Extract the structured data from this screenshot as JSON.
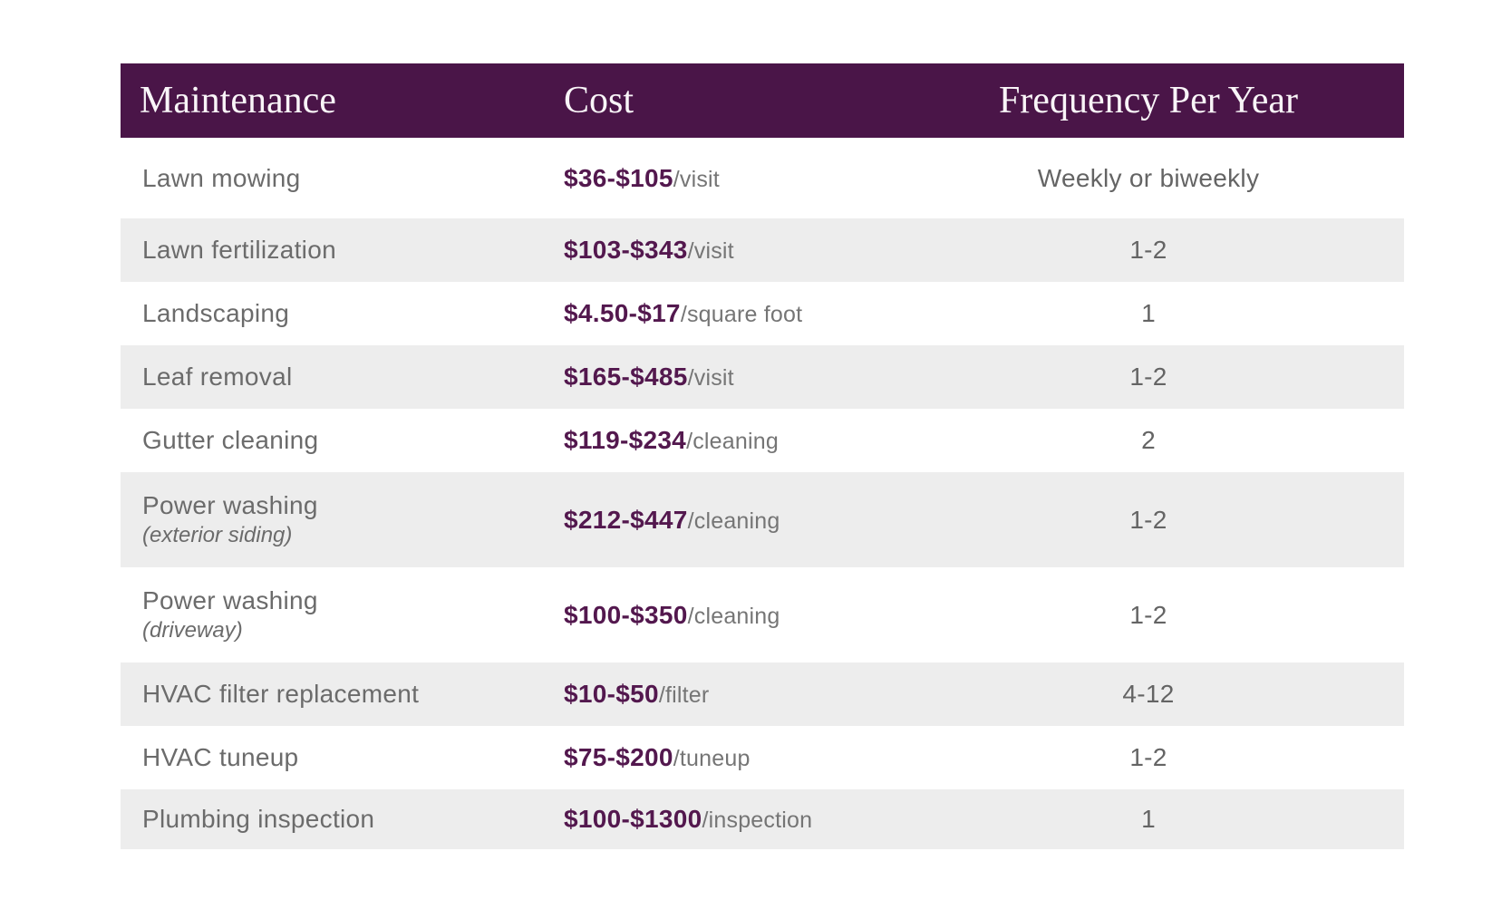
{
  "chart_data": {
    "type": "table",
    "columns": [
      "Maintenance",
      "Cost",
      "Frequency Per Year"
    ],
    "rows": [
      {
        "maintenance": "Lawn mowing",
        "sub": "",
        "cost": "$36-$105",
        "unit": "/visit",
        "frequency": "Weekly or biweekly"
      },
      {
        "maintenance": "Lawn fertilization",
        "sub": "",
        "cost": "$103-$343",
        "unit": "/visit",
        "frequency": "1-2"
      },
      {
        "maintenance": "Landscaping",
        "sub": "",
        "cost": "$4.50-$17",
        "unit": "/square foot",
        "frequency": "1"
      },
      {
        "maintenance": "Leaf removal",
        "sub": "",
        "cost": "$165-$485",
        "unit": "/visit",
        "frequency": "1-2"
      },
      {
        "maintenance": "Gutter cleaning",
        "sub": "",
        "cost": "$119-$234",
        "unit": "/cleaning",
        "frequency": "2"
      },
      {
        "maintenance": "Power washing",
        "sub": "(exterior siding)",
        "cost": "$212-$447",
        "unit": "/cleaning",
        "frequency": "1-2"
      },
      {
        "maintenance": "Power washing",
        "sub": "(driveway)",
        "cost": "$100-$350",
        "unit": "/cleaning",
        "frequency": "1-2"
      },
      {
        "maintenance": "HVAC filter replacement",
        "sub": "",
        "cost": "$10-$50",
        "unit": "/filter",
        "frequency": "4-12"
      },
      {
        "maintenance": "HVAC tuneup",
        "sub": "",
        "cost": "$75-$200",
        "unit": "/tuneup",
        "frequency": "1-2"
      },
      {
        "maintenance": "Plumbing inspection",
        "sub": "",
        "cost": "$100-$1300",
        "unit": "/inspection",
        "frequency": "1"
      }
    ],
    "layout": {
      "stripe": "alternating",
      "stripe_start_row": 2,
      "legend": "none",
      "grid": "off"
    }
  },
  "colors": {
    "header_bg": "#4a1548",
    "header_text": "#f9f5f8",
    "cost_text": "#53184e",
    "body_text": "#6b6b6b",
    "frequency_text": "#646464",
    "stripe_bg": "#ededed",
    "page_bg": "#ffffff"
  }
}
